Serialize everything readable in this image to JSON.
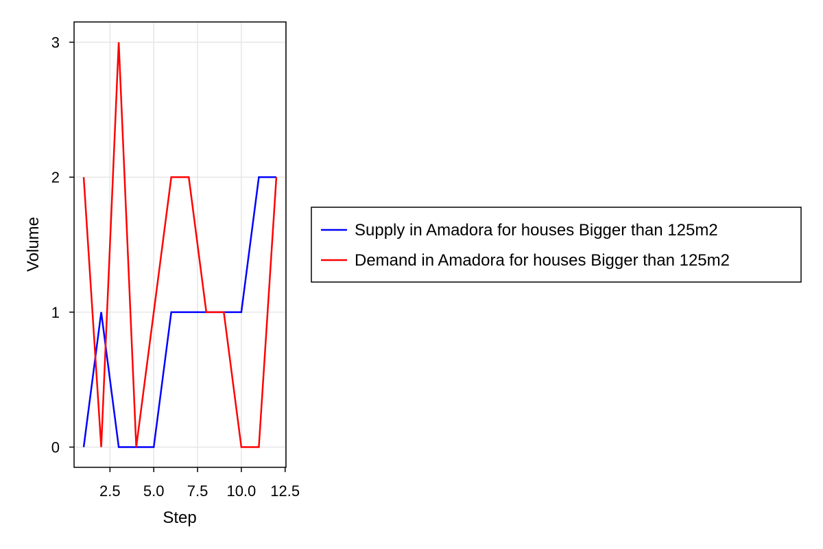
{
  "chart_data": {
    "type": "line",
    "title": "",
    "xlabel": "Step",
    "ylabel": "Volume",
    "xlim": [
      0.45,
      12.55
    ],
    "ylim": [
      -0.15,
      3.15
    ],
    "grid": true,
    "legend_position": "right",
    "x_ticks": [
      {
        "value": 2.5,
        "label": "2.5"
      },
      {
        "value": 5.0,
        "label": "5.0"
      },
      {
        "value": 7.5,
        "label": "7.5"
      },
      {
        "value": 10.0,
        "label": "10.0"
      },
      {
        "value": 12.5,
        "label": "12.5"
      }
    ],
    "y_ticks": [
      {
        "value": 0,
        "label": "0"
      },
      {
        "value": 1,
        "label": "1"
      },
      {
        "value": 2,
        "label": "2"
      },
      {
        "value": 3,
        "label": "3"
      }
    ],
    "x": [
      1,
      2,
      3,
      4,
      5,
      6,
      7,
      8,
      9,
      10,
      11,
      12
    ],
    "series": [
      {
        "name": "Supply in Amadora for houses Bigger than 125m2",
        "color": "#0000ff",
        "values": [
          0,
          1,
          0,
          0,
          0,
          1,
          1,
          1,
          1,
          1,
          2,
          2
        ]
      },
      {
        "name": "Demand in Amadora for houses Bigger than 125m2",
        "color": "#ff0000",
        "values": [
          2,
          0,
          3,
          0,
          1,
          2,
          2,
          1,
          1,
          0,
          0,
          2
        ]
      }
    ]
  }
}
